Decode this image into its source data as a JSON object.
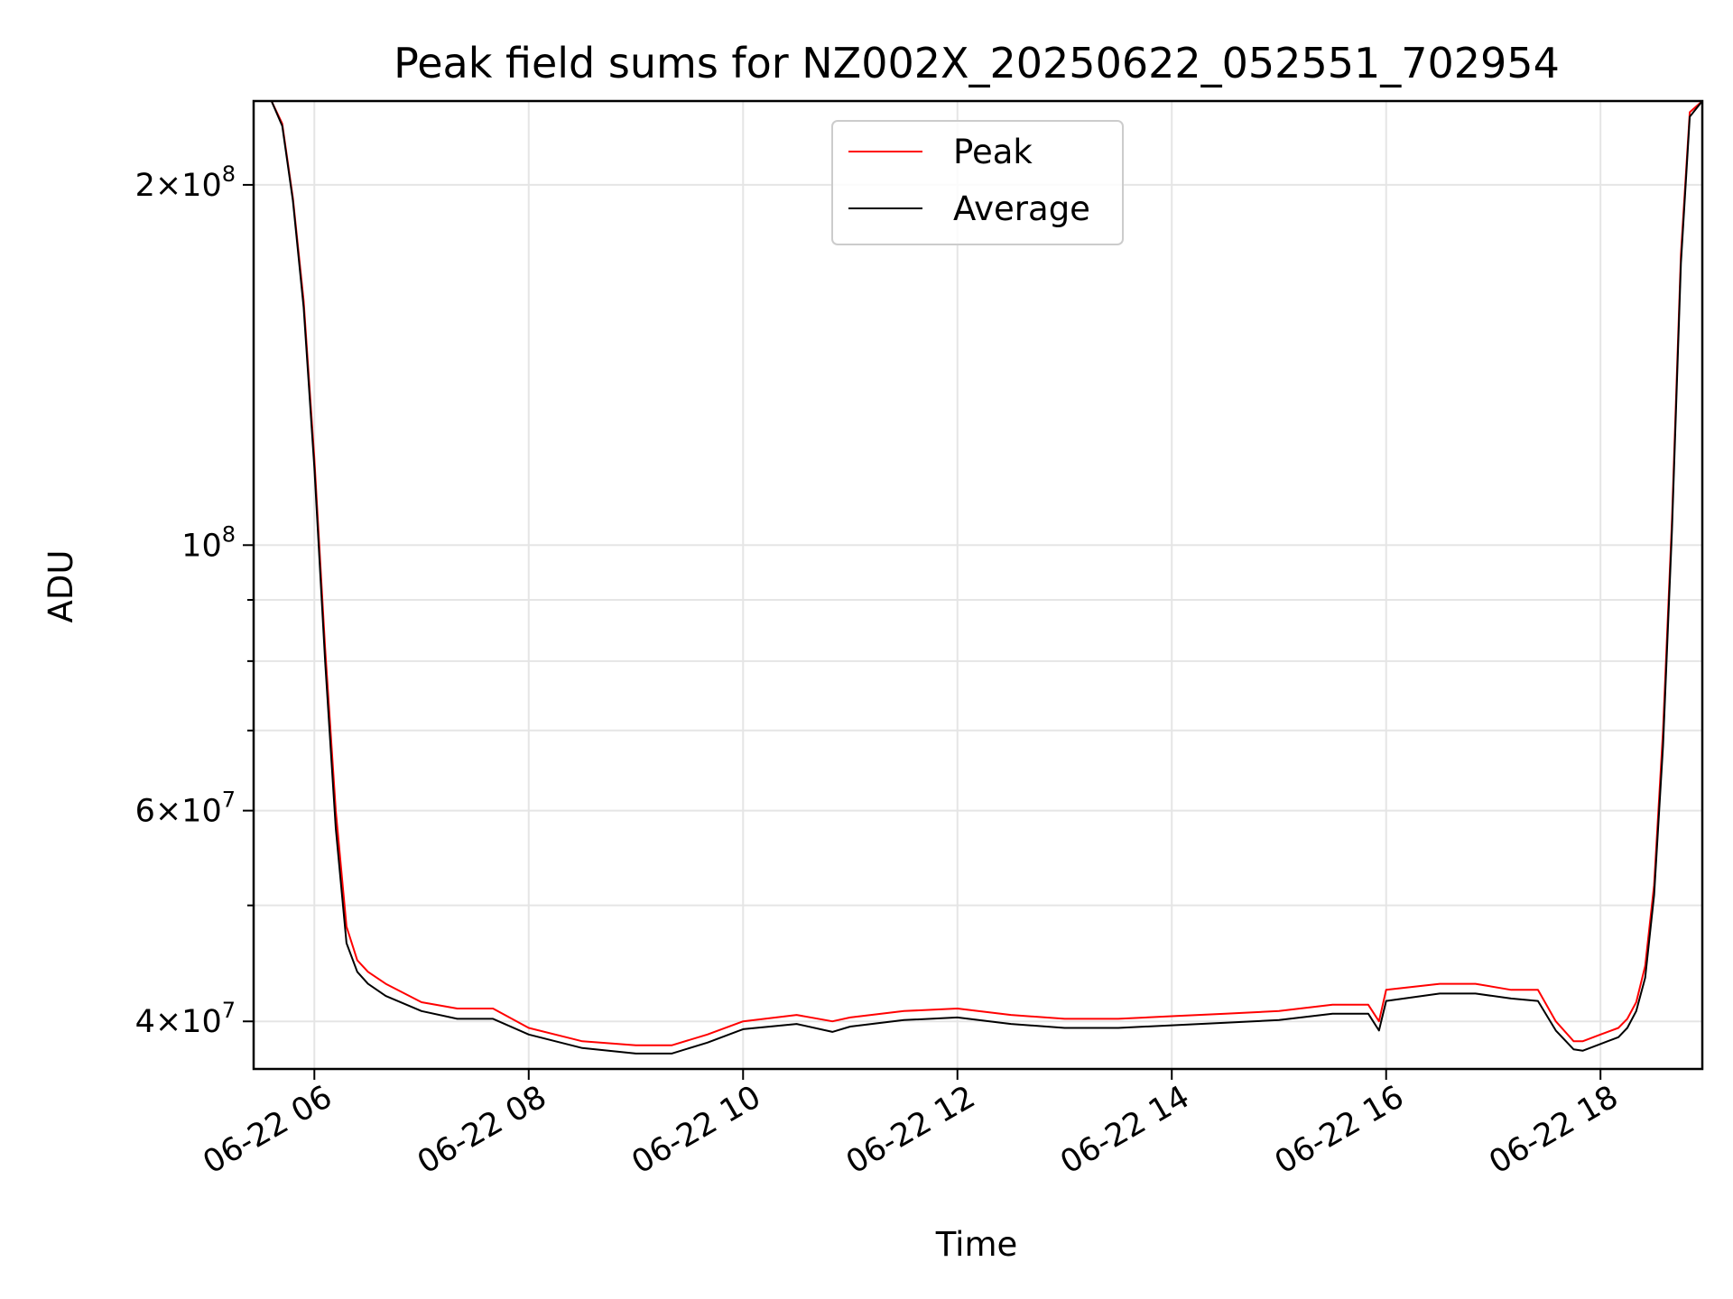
{
  "chart_data": {
    "type": "line",
    "title": "Peak field sums for NZ002X_20250622_052551_702954",
    "xlabel": "Time",
    "ylabel": "ADU",
    "yscale": "log",
    "ylim": [
      36500000,
      235000000
    ],
    "xlim": [
      "2025-06-22 05:26",
      "2025-06-22 18:57"
    ],
    "grid": true,
    "legend": "upper center",
    "x_ticks": [
      {
        "value": "2025-06-22 06:00",
        "label": "06-22 06"
      },
      {
        "value": "2025-06-22 08:00",
        "label": "06-22 08"
      },
      {
        "value": "2025-06-22 10:00",
        "label": "06-22 10"
      },
      {
        "value": "2025-06-22 12:00",
        "label": "06-22 12"
      },
      {
        "value": "2025-06-22 14:00",
        "label": "06-22 14"
      },
      {
        "value": "2025-06-22 16:00",
        "label": "06-22 16"
      },
      {
        "value": "2025-06-22 18:00",
        "label": "06-22 18"
      }
    ],
    "y_ticks": [
      {
        "value": 40000000,
        "base": "4×10",
        "exp": "7"
      },
      {
        "value": 60000000,
        "base": "6×10",
        "exp": "7"
      },
      {
        "value": 100000000,
        "base": "10",
        "exp": "8"
      },
      {
        "value": 200000000,
        "base": "2×10",
        "exp": "8"
      }
    ],
    "y_minor_ticks": [
      50000000,
      70000000,
      80000000,
      90000000
    ],
    "series": [
      {
        "name": "Peak",
        "color": "#ff0000",
        "x": [
          "2025-06-22 05:26",
          "2025-06-22 05:36",
          "2025-06-22 05:42",
          "2025-06-22 05:48",
          "2025-06-22 05:54",
          "2025-06-22 06:00",
          "2025-06-22 06:06",
          "2025-06-22 06:12",
          "2025-06-22 06:18",
          "2025-06-22 06:24",
          "2025-06-22 06:30",
          "2025-06-22 06:40",
          "2025-06-22 07:00",
          "2025-06-22 07:20",
          "2025-06-22 07:40",
          "2025-06-22 08:00",
          "2025-06-22 08:30",
          "2025-06-22 09:00",
          "2025-06-22 09:20",
          "2025-06-22 09:40",
          "2025-06-22 10:00",
          "2025-06-22 10:30",
          "2025-06-22 10:50",
          "2025-06-22 11:00",
          "2025-06-22 11:30",
          "2025-06-22 12:00",
          "2025-06-22 12:30",
          "2025-06-22 13:00",
          "2025-06-22 13:30",
          "2025-06-22 14:00",
          "2025-06-22 14:30",
          "2025-06-22 15:00",
          "2025-06-22 15:30",
          "2025-06-22 15:50",
          "2025-06-22 15:56",
          "2025-06-22 16:00",
          "2025-06-22 16:30",
          "2025-06-22 16:50",
          "2025-06-22 17:10",
          "2025-06-22 17:25",
          "2025-06-22 17:35",
          "2025-06-22 17:45",
          "2025-06-22 17:50",
          "2025-06-22 18:00",
          "2025-06-22 18:10",
          "2025-06-22 18:15",
          "2025-06-22 18:20",
          "2025-06-22 18:25",
          "2025-06-22 18:30",
          "2025-06-22 18:35",
          "2025-06-22 18:40",
          "2025-06-22 18:45",
          "2025-06-22 18:50",
          "2025-06-22 18:57"
        ],
        "values": [
          235000000,
          235000000,
          225000000,
          195000000,
          160000000,
          118000000,
          82000000,
          60000000,
          48000000,
          45000000,
          44000000,
          43000000,
          41500000,
          41000000,
          41000000,
          39500000,
          38500000,
          38200000,
          38200000,
          39000000,
          40000000,
          40500000,
          40000000,
          40300000,
          40800000,
          41000000,
          40500000,
          40200000,
          40200000,
          40400000,
          40600000,
          40800000,
          41300000,
          41300000,
          40000000,
          42500000,
          43000000,
          43000000,
          42500000,
          42500000,
          40000000,
          38500000,
          38500000,
          39000000,
          39500000,
          40200000,
          41500000,
          44500000,
          52000000,
          70000000,
          105000000,
          175000000,
          230000000,
          235000000
        ]
      },
      {
        "name": "Average",
        "color": "#000000",
        "x": [
          "2025-06-22 05:26",
          "2025-06-22 05:36",
          "2025-06-22 05:42",
          "2025-06-22 05:48",
          "2025-06-22 05:54",
          "2025-06-22 06:00",
          "2025-06-22 06:06",
          "2025-06-22 06:12",
          "2025-06-22 06:18",
          "2025-06-22 06:24",
          "2025-06-22 06:30",
          "2025-06-22 06:40",
          "2025-06-22 07:00",
          "2025-06-22 07:20",
          "2025-06-22 07:40",
          "2025-06-22 08:00",
          "2025-06-22 08:30",
          "2025-06-22 09:00",
          "2025-06-22 09:20",
          "2025-06-22 09:40",
          "2025-06-22 10:00",
          "2025-06-22 10:30",
          "2025-06-22 10:50",
          "2025-06-22 11:00",
          "2025-06-22 11:30",
          "2025-06-22 12:00",
          "2025-06-22 12:30",
          "2025-06-22 13:00",
          "2025-06-22 13:30",
          "2025-06-22 14:00",
          "2025-06-22 14:30",
          "2025-06-22 15:00",
          "2025-06-22 15:30",
          "2025-06-22 15:50",
          "2025-06-22 15:56",
          "2025-06-22 16:00",
          "2025-06-22 16:30",
          "2025-06-22 16:50",
          "2025-06-22 17:10",
          "2025-06-22 17:25",
          "2025-06-22 17:35",
          "2025-06-22 17:45",
          "2025-06-22 17:50",
          "2025-06-22 18:00",
          "2025-06-22 18:10",
          "2025-06-22 18:15",
          "2025-06-22 18:20",
          "2025-06-22 18:25",
          "2025-06-22 18:30",
          "2025-06-22 18:35",
          "2025-06-22 18:40",
          "2025-06-22 18:45",
          "2025-06-22 18:50",
          "2025-06-22 18:57"
        ],
        "values": [
          235000000,
          235000000,
          224000000,
          194000000,
          158000000,
          116000000,
          80000000,
          58000000,
          46500000,
          44000000,
          43000000,
          42000000,
          40800000,
          40200000,
          40200000,
          39000000,
          38000000,
          37600000,
          37600000,
          38400000,
          39400000,
          39800000,
          39200000,
          39600000,
          40100000,
          40300000,
          39800000,
          39500000,
          39500000,
          39700000,
          39900000,
          40100000,
          40600000,
          40600000,
          39300000,
          41600000,
          42200000,
          42200000,
          41800000,
          41600000,
          39300000,
          37900000,
          37800000,
          38300000,
          38800000,
          39500000,
          40800000,
          43500000,
          51000000,
          68000000,
          103000000,
          172000000,
          228000000,
          235000000
        ]
      }
    ]
  }
}
